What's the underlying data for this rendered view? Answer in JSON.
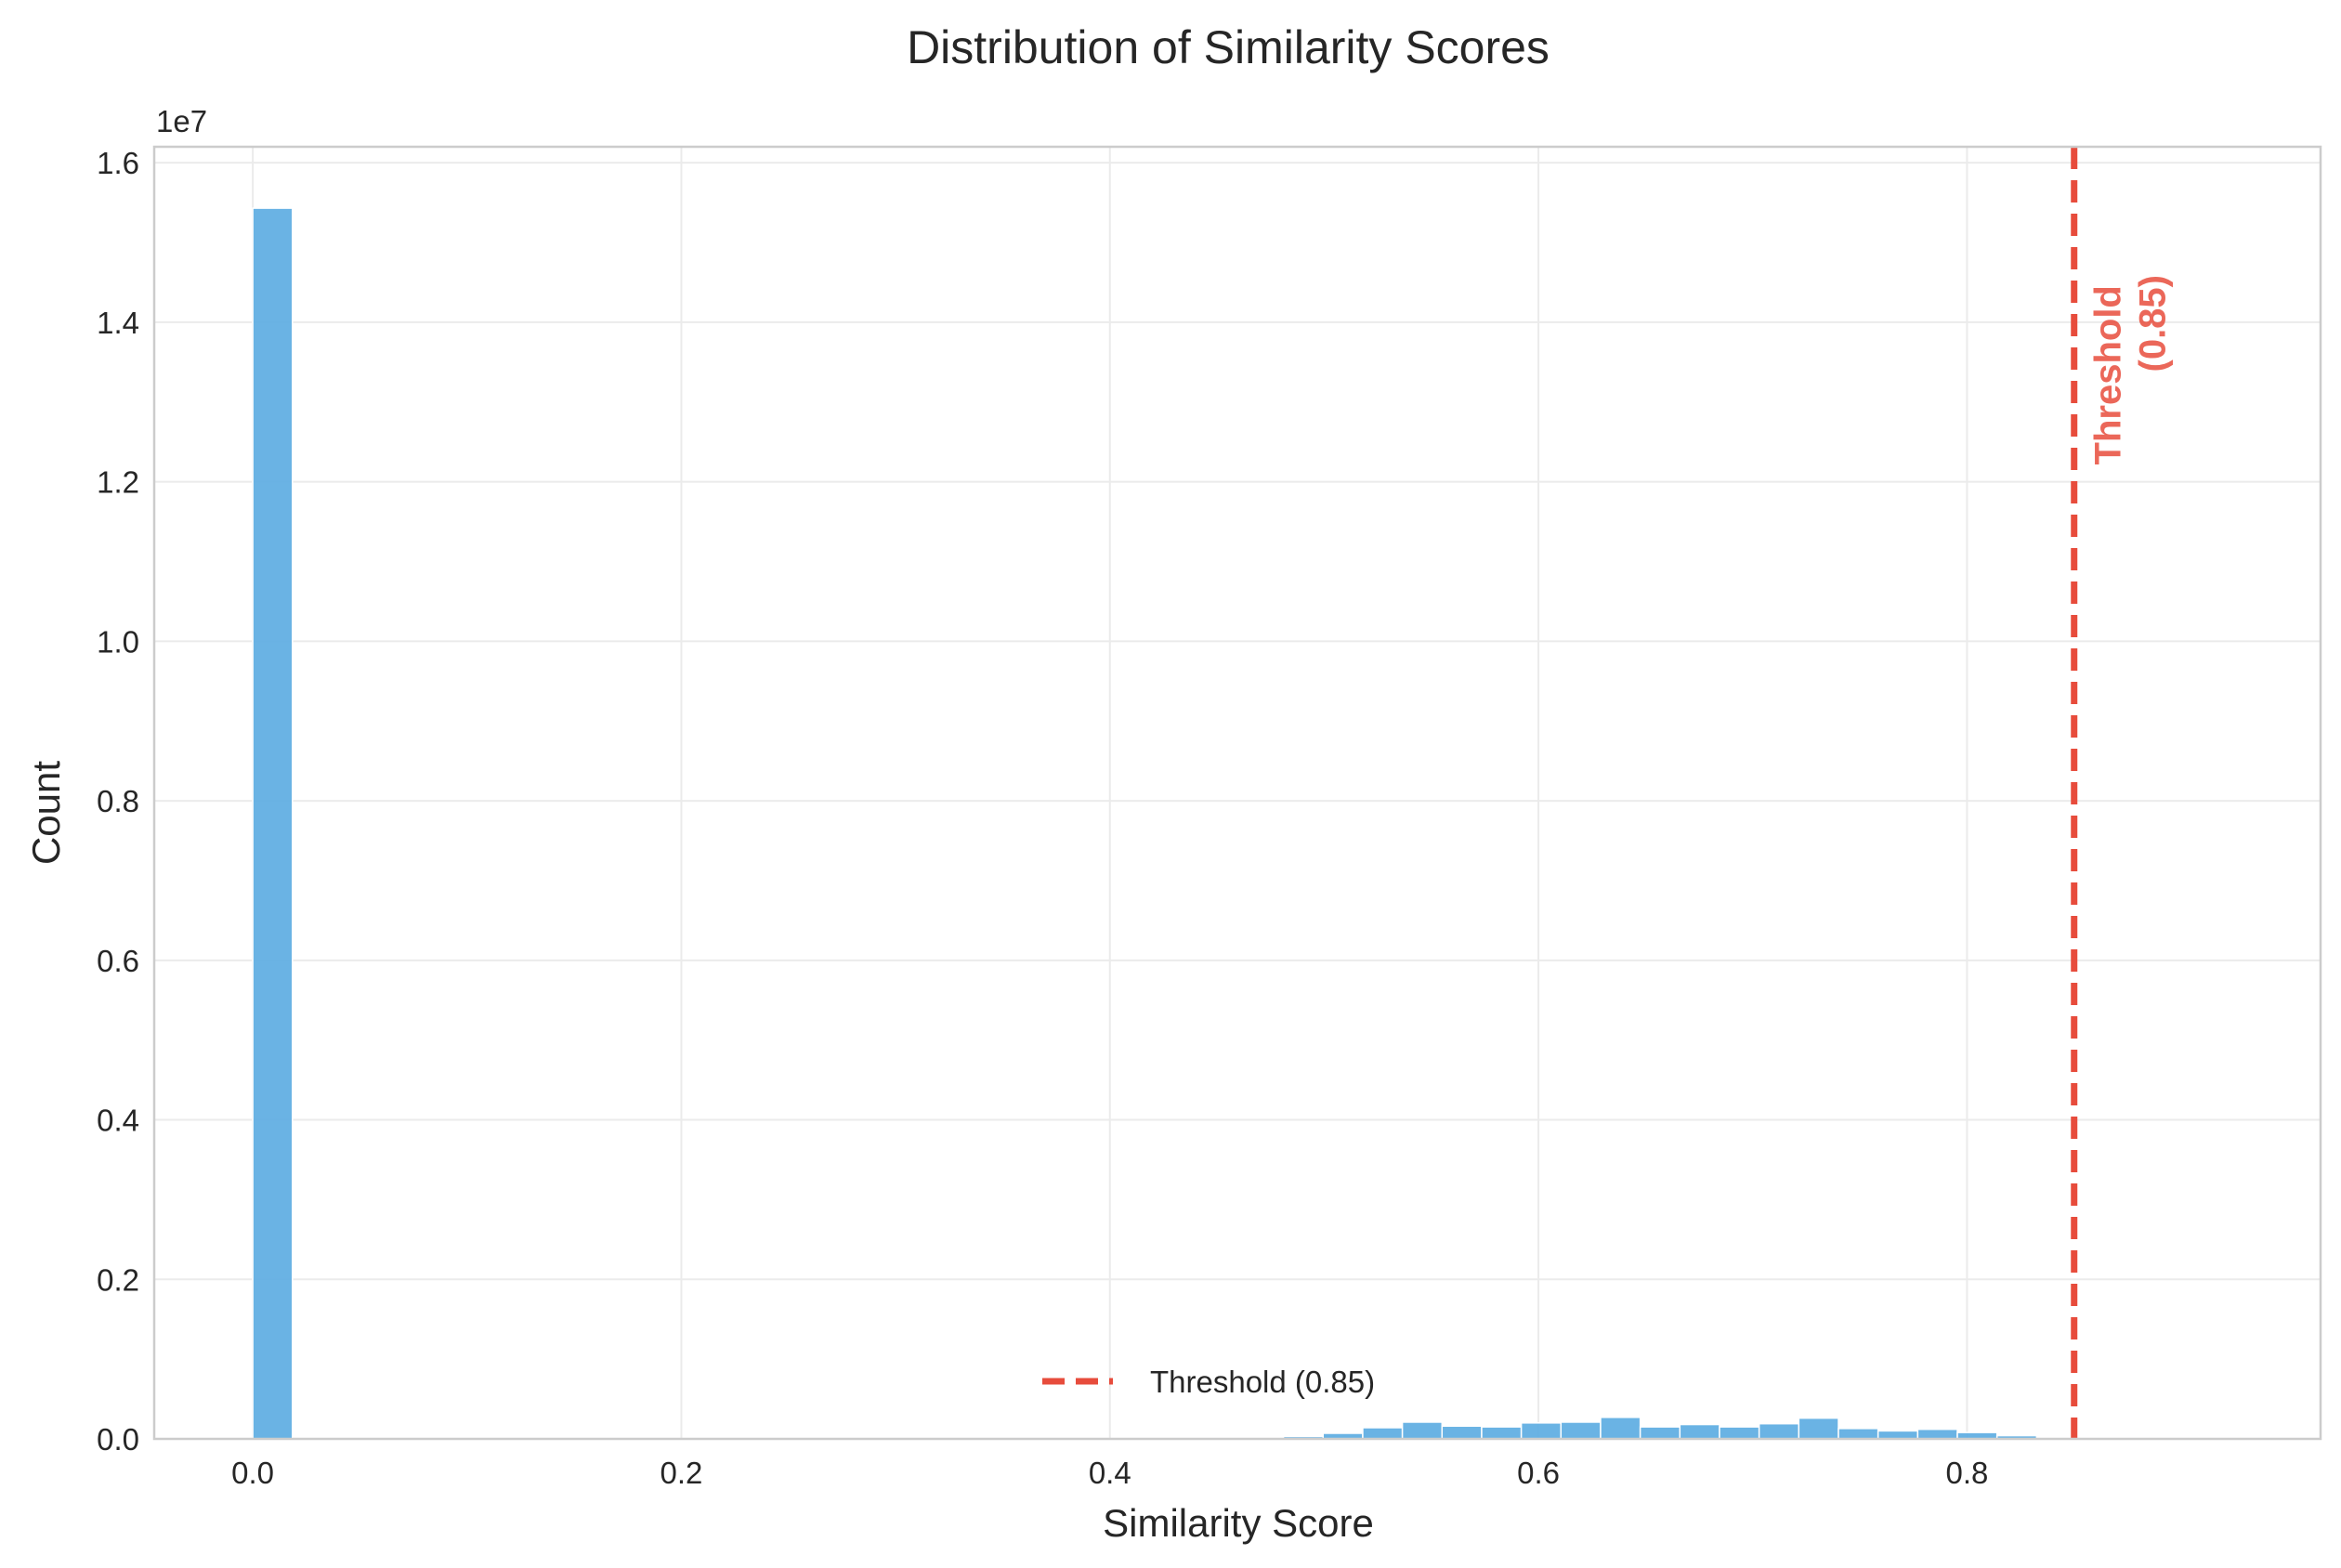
{
  "chart_data": {
    "type": "bar",
    "title": "Distribution of Similarity Scores",
    "xlabel": "Similarity Score",
    "ylabel": "Count",
    "y_offset_label": "1e7",
    "xlim": [
      -0.046,
      0.965
    ],
    "ylim": [
      0,
      1.62
    ],
    "x_ticks": [
      0.0,
      0.2,
      0.4,
      0.6,
      0.8
    ],
    "x_tick_labels": [
      "0.0",
      "0.2",
      "0.4",
      "0.6",
      "0.8"
    ],
    "y_ticks": [
      0.0,
      0.2,
      0.4,
      0.6,
      0.8,
      1.0,
      1.2,
      1.4,
      1.6
    ],
    "y_tick_labels": [
      "0.0",
      "0.2",
      "0.4",
      "0.6",
      "0.8",
      "1.0",
      "1.2",
      "1.4",
      "1.6"
    ],
    "grid": true,
    "bin_width": 0.0185,
    "bins": [
      {
        "x0": 0.0,
        "count": 1.543
      },
      {
        "x0": 0.481,
        "count": 0.003
      },
      {
        "x0": 0.4995,
        "count": 0.007
      },
      {
        "x0": 0.518,
        "count": 0.014
      },
      {
        "x0": 0.5365,
        "count": 0.021
      },
      {
        "x0": 0.555,
        "count": 0.016
      },
      {
        "x0": 0.5735,
        "count": 0.015
      },
      {
        "x0": 0.592,
        "count": 0.02
      },
      {
        "x0": 0.6105,
        "count": 0.021
      },
      {
        "x0": 0.629,
        "count": 0.027
      },
      {
        "x0": 0.6475,
        "count": 0.015
      },
      {
        "x0": 0.666,
        "count": 0.018
      },
      {
        "x0": 0.6845,
        "count": 0.015
      },
      {
        "x0": 0.703,
        "count": 0.019
      },
      {
        "x0": 0.7215,
        "count": 0.026
      },
      {
        "x0": 0.74,
        "count": 0.013
      },
      {
        "x0": 0.7585,
        "count": 0.01
      },
      {
        "x0": 0.777,
        "count": 0.012
      },
      {
        "x0": 0.7955,
        "count": 0.008
      },
      {
        "x0": 0.814,
        "count": 0.004
      }
    ],
    "bar_color": "#5DADE2",
    "threshold": {
      "x": 0.85,
      "color": "#E74C3C",
      "line_label_1": "Threshold",
      "line_label_2": "(0.85)"
    },
    "legend": {
      "placement": "lower-center",
      "entries": [
        "Threshold (0.85)"
      ]
    }
  }
}
